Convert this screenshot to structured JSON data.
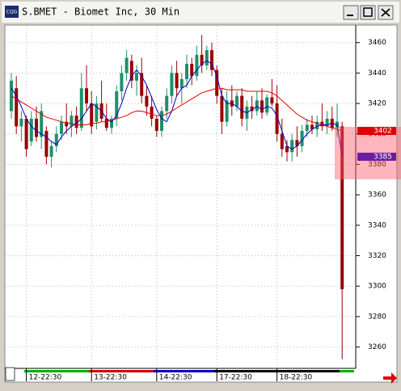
{
  "window": {
    "icon_text": "CQG"
  },
  "chart_data": {
    "type": "candlestick",
    "title": "S.BMET - Biomet Inc, 30 Min",
    "up_color": "#1f8f6a",
    "down_color": "#9b0000",
    "open": [
      3415,
      3430,
      3405,
      3410,
      3395,
      3410,
      3398,
      3402,
      3385,
      3392,
      3400,
      3408,
      3405,
      3412,
      3404,
      3430,
      3420,
      3408,
      3420,
      3410,
      3404,
      3410,
      3428,
      3440,
      3448,
      3435,
      3440,
      3425,
      3418,
      3410,
      3402,
      3415,
      3425,
      3440,
      3430,
      3436,
      3446,
      3438,
      3452,
      3445,
      3455,
      3442,
      3425,
      3408,
      3422,
      3418,
      3425,
      3410,
      3418,
      3415,
      3422,
      3414,
      3424,
      3420,
      3400,
      3392,
      3388,
      3396,
      3392,
      3402,
      3406,
      3403,
      3408,
      3405,
      3410,
      3404,
      3405
    ],
    "high": [
      3440,
      3438,
      3415,
      3412,
      3415,
      3418,
      3420,
      3405,
      3395,
      3405,
      3412,
      3420,
      3415,
      3418,
      3440,
      3445,
      3428,
      3425,
      3435,
      3420,
      3412,
      3432,
      3445,
      3455,
      3452,
      3445,
      3450,
      3432,
      3425,
      3412,
      3418,
      3430,
      3445,
      3448,
      3440,
      3452,
      3450,
      3458,
      3465,
      3458,
      3460,
      3445,
      3430,
      3428,
      3432,
      3428,
      3430,
      3422,
      3425,
      3428,
      3430,
      3426,
      3436,
      3432,
      3410,
      3396,
      3400,
      3405,
      3406,
      3410,
      3412,
      3412,
      3420,
      3415,
      3418,
      3420,
      3408
    ],
    "low": [
      3410,
      3400,
      3395,
      3385,
      3392,
      3395,
      3390,
      3380,
      3378,
      3388,
      3396,
      3400,
      3398,
      3400,
      3402,
      3415,
      3400,
      3403,
      3408,
      3402,
      3400,
      3405,
      3422,
      3435,
      3430,
      3425,
      3420,
      3412,
      3405,
      3398,
      3398,
      3410,
      3420,
      3425,
      3420,
      3430,
      3432,
      3435,
      3440,
      3442,
      3438,
      3420,
      3400,
      3405,
      3412,
      3415,
      3405,
      3402,
      3410,
      3412,
      3410,
      3412,
      3418,
      3395,
      3385,
      3382,
      3382,
      3385,
      3388,
      3398,
      3400,
      3398,
      3402,
      3400,
      3402,
      3398,
      3252
    ],
    "close": [
      3435,
      3405,
      3410,
      3390,
      3410,
      3398,
      3415,
      3385,
      3392,
      3400,
      3408,
      3405,
      3412,
      3404,
      3430,
      3420,
      3405,
      3420,
      3410,
      3404,
      3410,
      3428,
      3440,
      3450,
      3435,
      3440,
      3425,
      3418,
      3410,
      3402,
      3415,
      3425,
      3440,
      3430,
      3436,
      3446,
      3438,
      3452,
      3445,
      3455,
      3442,
      3425,
      3408,
      3422,
      3418,
      3425,
      3410,
      3418,
      3415,
      3422,
      3414,
      3424,
      3420,
      3400,
      3390,
      3388,
      3396,
      3392,
      3402,
      3406,
      3403,
      3408,
      3405,
      3410,
      3404,
      3408,
      3298
    ],
    "series": [
      {
        "color": "#0000c0",
        "values": [
          3430,
          3425,
          3418,
          3410,
          3405,
          3402,
          3400,
          3398,
          3395,
          3393,
          3398,
          3402,
          3405,
          3407,
          3410,
          3415,
          3420,
          3418,
          3415,
          3410,
          3408,
          3412,
          3420,
          3430,
          3438,
          3442,
          3438,
          3432,
          3424,
          3416,
          3410,
          3408,
          3415,
          3425,
          3430,
          3432,
          3438,
          3442,
          3446,
          3448,
          3446,
          3438,
          3425,
          3420,
          3420,
          3418,
          3415,
          3414,
          3416,
          3418,
          3416,
          3418,
          3417,
          3412,
          3402,
          3392,
          3390,
          3392,
          3396,
          3400,
          3403,
          3405,
          3406,
          3406,
          3407,
          3406,
          3385
        ],
        "tag_color": "#6a1fa0"
      },
      {
        "color": "#e00000",
        "values": [
          3425,
          3423,
          3421,
          3419,
          3417,
          3415,
          3413,
          3411,
          3410,
          3409,
          3408,
          3407,
          3407,
          3406,
          3406,
          3406,
          3407,
          3407,
          3408,
          3408,
          3409,
          3410,
          3411,
          3412,
          3414,
          3415,
          3415,
          3414,
          3413,
          3412,
          3412,
          3413,
          3415,
          3417,
          3419,
          3421,
          3423,
          3425,
          3427,
          3428,
          3429,
          3430,
          3430,
          3429,
          3429,
          3429,
          3429,
          3428,
          3428,
          3428,
          3428,
          3428,
          3427,
          3425,
          3422,
          3419,
          3416,
          3413,
          3411,
          3409,
          3408,
          3407,
          3406,
          3405,
          3404,
          3403,
          3402
        ],
        "tag_color": "#e00000"
      }
    ],
    "xticks": [
      {
        "value": 3,
        "label": "12-22:30"
      },
      {
        "value": 16,
        "label": "13-22:30"
      },
      {
        "value": 29,
        "label": "14-22:30"
      },
      {
        "value": 41,
        "label": "17-22:30"
      },
      {
        "value": 53,
        "label": "18-22:30"
      }
    ],
    "ylim": [
      3246.5,
      3471
    ],
    "yticks": [
      3260,
      3280,
      3300,
      3320,
      3340,
      3360,
      3380,
      3400,
      3420,
      3440,
      3460
    ],
    "grid": true
  }
}
